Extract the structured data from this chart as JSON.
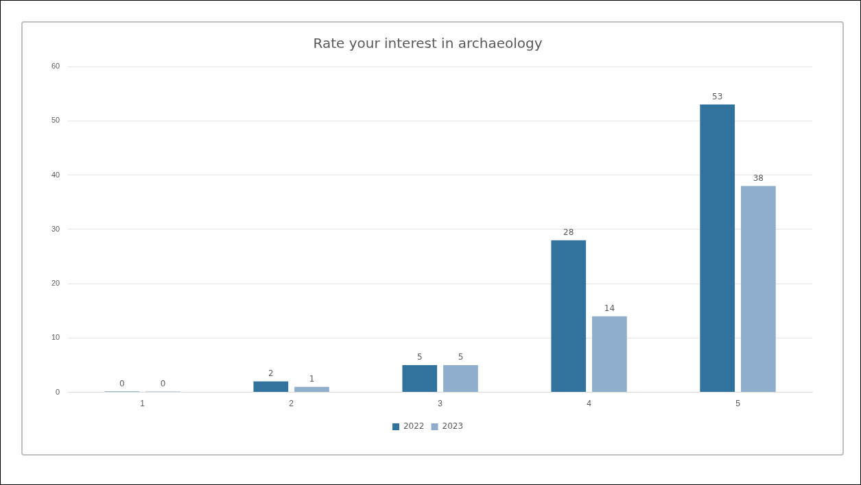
{
  "chart_data": {
    "type": "bar",
    "title": "Rate your interest in archaeology",
    "categories": [
      "1",
      "2",
      "3",
      "4",
      "5"
    ],
    "series": [
      {
        "name": "2022",
        "color": "#31739c",
        "values": [
          0,
          2,
          5,
          28,
          53
        ]
      },
      {
        "name": "2023",
        "color": "#8eaecb",
        "values": [
          0,
          1,
          5,
          14,
          38
        ]
      }
    ],
    "ylim": [
      0,
      60
    ],
    "yticks": [
      0,
      10,
      20,
      30,
      40,
      50,
      60
    ],
    "grid": "y",
    "legend": "bottom",
    "data_labels": true
  }
}
